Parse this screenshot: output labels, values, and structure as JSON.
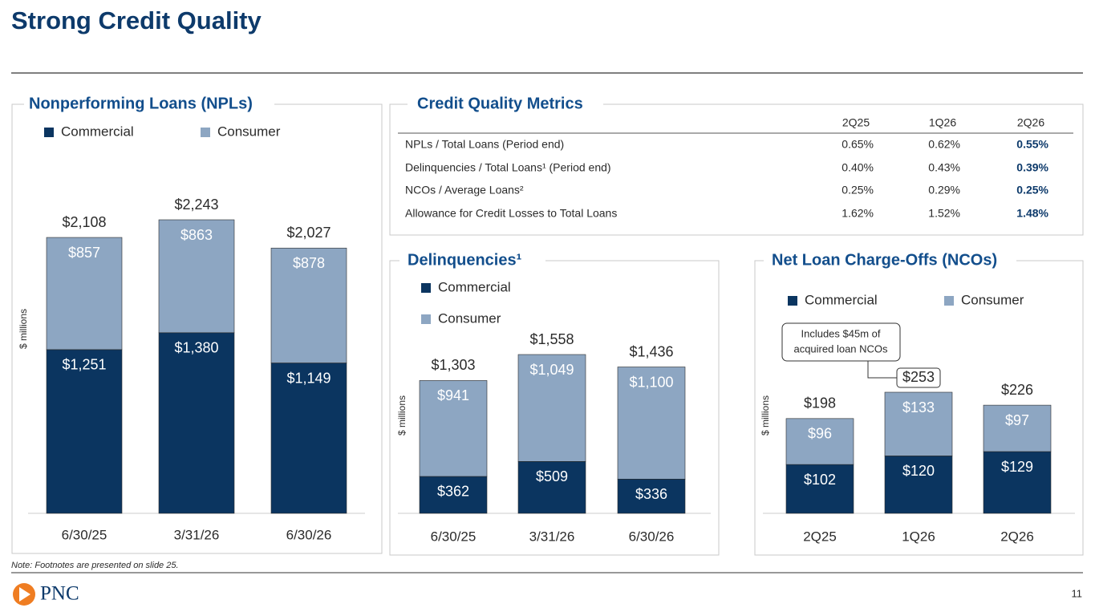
{
  "title": "Strong Credit Quality",
  "note": "Note: Footnotes are presented on slide 25.",
  "logo_text": "PNC",
  "page_number": "11",
  "table": {
    "title": "Credit Quality Metrics",
    "columns": [
      "2Q25",
      "1Q26",
      "2Q26"
    ],
    "rows": [
      {
        "label": "NPLs / Total Loans (Period end)",
        "values": [
          "0.65%",
          "0.62%",
          "0.55%"
        ]
      },
      {
        "label": "Delinquencies / Total Loans¹ (Period end)",
        "values": [
          "0.40%",
          "0.43%",
          "0.39%"
        ]
      },
      {
        "label": "NCOs / Average Loans²",
        "values": [
          "0.25%",
          "0.29%",
          "0.25%"
        ]
      },
      {
        "label": "Allowance for Credit Losses to Total Loans",
        "values": [
          "1.62%",
          "1.52%",
          "1.48%"
        ]
      }
    ]
  },
  "chart_data": [
    {
      "type": "bar",
      "stacked": true,
      "title": "Nonperforming Loans (NPLs)",
      "y_label": "$ millions",
      "categories": [
        "6/30/25",
        "3/31/26",
        "6/30/26"
      ],
      "series": [
        {
          "name": "Commercial",
          "color": "#0b3560",
          "values": [
            1251,
            1380,
            1149
          ],
          "value_labels": [
            "$1,251",
            "$1,380",
            "$1,149"
          ]
        },
        {
          "name": "Consumer",
          "color": "#8da6c2",
          "values": [
            857,
            863,
            878
          ],
          "value_labels": [
            "$857",
            "$863",
            "$878"
          ]
        }
      ],
      "totals": [
        2108,
        2243,
        2027
      ],
      "total_labels": [
        "$2,108",
        "$2,243",
        "$2,027"
      ]
    },
    {
      "type": "bar",
      "stacked": true,
      "title": "Delinquencies¹",
      "y_label": "$ millions",
      "categories": [
        "6/30/25",
        "3/31/26",
        "6/30/26"
      ],
      "series": [
        {
          "name": "Commercial",
          "color": "#0b3560",
          "values": [
            362,
            509,
            336
          ],
          "value_labels": [
            "$362",
            "$509",
            "$336"
          ]
        },
        {
          "name": "Consumer",
          "color": "#8da6c2",
          "values": [
            941,
            1049,
            1100
          ],
          "value_labels": [
            "$941",
            "$1,049",
            "$1,100"
          ]
        }
      ],
      "totals": [
        1303,
        1558,
        1436
      ],
      "total_labels": [
        "$1,303",
        "$1,558",
        "$1,436"
      ]
    },
    {
      "type": "bar",
      "stacked": true,
      "title": "Net Loan Charge-Offs (NCOs)",
      "y_label": "$ millions",
      "categories": [
        "2Q25",
        "1Q26",
        "2Q26"
      ],
      "series": [
        {
          "name": "Commercial",
          "color": "#0b3560",
          "values": [
            102,
            120,
            129
          ],
          "value_labels": [
            "$102",
            "$120",
            "$129"
          ]
        },
        {
          "name": "Consumer",
          "color": "#8da6c2",
          "values": [
            96,
            133,
            97
          ],
          "value_labels": [
            "$96",
            "$133",
            "$97"
          ]
        }
      ],
      "totals": [
        198,
        253,
        226
      ],
      "total_labels": [
        "$198",
        "$253",
        "$226"
      ],
      "annotation": {
        "lines": [
          "Includes $45m of",
          "acquired loan NCOs"
        ],
        "category": "1Q26"
      }
    }
  ]
}
